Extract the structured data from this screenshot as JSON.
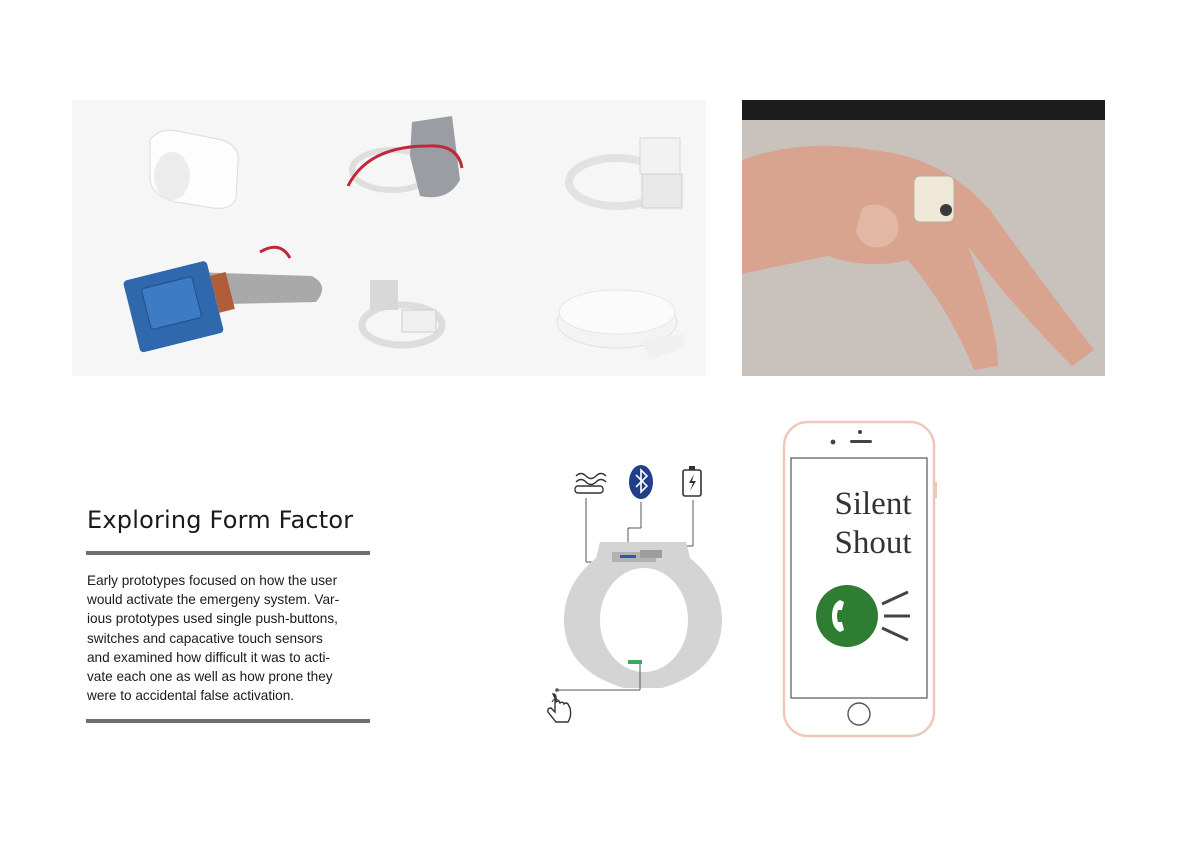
{
  "section": {
    "title": "Exploring Form Factor",
    "body_lines": [
      "Early prototypes focused on how the user",
      "would activate the emergeny system. Var-",
      "ious prototypes used single push-buttons,",
      "switches and capacative touch sensors",
      "and examined how difficult it was to acti-",
      "vate each one as well as how prone they",
      "were to accidental false activation."
    ]
  },
  "phone_screen": {
    "app_name_line1": "Silent",
    "app_name_line2": "Shout"
  },
  "colors": {
    "rule": "#6f6f6f",
    "bluetooth": "#1f3f8a",
    "call_green": "#2e7d32",
    "phone_frame": "#eec8b8"
  },
  "icons": [
    "pressure-sensor-icon",
    "bluetooth-icon",
    "battery-icon",
    "pointer-hand-icon",
    "phone-call-icon"
  ]
}
